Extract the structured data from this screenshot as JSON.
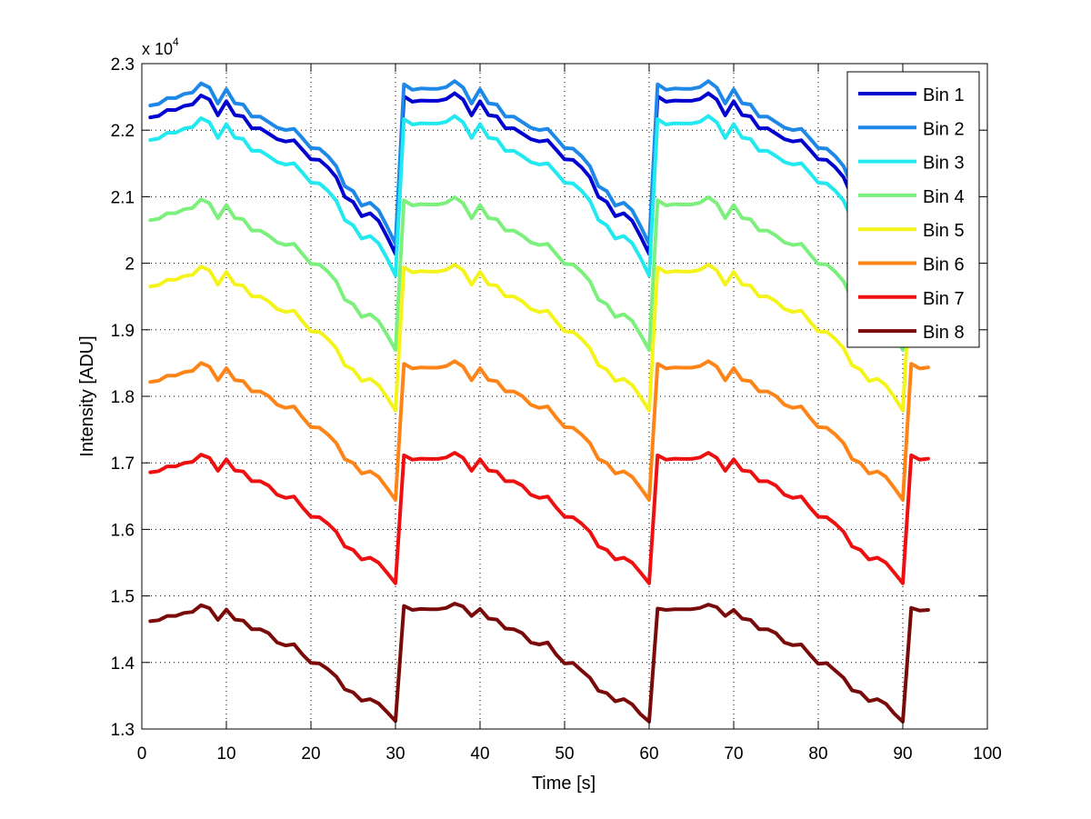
{
  "chart_data": {
    "type": "line",
    "title": "",
    "xlabel": "Time [s]",
    "ylabel": "Intensity [ADU]",
    "y_multiplier_label": "x 10",
    "y_multiplier_exponent": "4",
    "xlim": [
      0,
      100
    ],
    "ylim": [
      13000,
      23000
    ],
    "xticks": [
      0,
      10,
      20,
      30,
      40,
      50,
      60,
      70,
      80,
      90,
      100
    ],
    "xtick_labels": [
      "0",
      "10",
      "20",
      "30",
      "40",
      "50",
      "60",
      "70",
      "80",
      "90",
      "100"
    ],
    "yticks": [
      13000,
      14000,
      15000,
      16000,
      17000,
      18000,
      19000,
      20000,
      21000,
      22000,
      23000
    ],
    "ytick_labels": [
      "1.3",
      "1.4",
      "1.5",
      "1.6",
      "1.7",
      "1.8",
      "1.9",
      "2",
      "2.1",
      "2.2",
      "2.3"
    ],
    "grid": true,
    "legend_position": "top-right",
    "x_start": 1,
    "x_step": 1,
    "series": [
      {
        "name": "Bin 1",
        "color": "#0000d0",
        "values": [
          22193,
          22215,
          22303,
          22303,
          22365,
          22386,
          22522,
          22460,
          22222,
          22434,
          22227,
          22208,
          22029,
          22029,
          21948,
          21865,
          21829,
          21848,
          21707,
          21562,
          21553,
          21443,
          21293,
          20998,
          20921,
          20707,
          20752,
          20638,
          20400,
          20140,
          22508,
          22427,
          22446,
          22441,
          22441,
          22467,
          22555,
          22460,
          22222,
          22434,
          22227,
          22208,
          22029,
          22029,
          21948,
          21865,
          21829,
          21848,
          21707,
          21562,
          21553,
          21443,
          21293,
          20998,
          20921,
          20707,
          20752,
          20638,
          20400,
          20140,
          22508,
          22427,
          22446,
          22441,
          22441,
          22467,
          22555,
          22460,
          22222,
          22434,
          22227,
          22208,
          22029,
          22029,
          21948,
          21865,
          21829,
          21848,
          21707,
          21562,
          21553,
          21443,
          21293,
          20998,
          20921,
          20707,
          20752,
          20638,
          20400,
          20140,
          22508,
          22427,
          22446
        ]
      },
      {
        "name": "Bin 2",
        "color": "#1e88e8",
        "values": [
          22371,
          22393,
          22482,
          22482,
          22545,
          22566,
          22704,
          22641,
          22400,
          22615,
          22405,
          22385,
          22204,
          22204,
          22122,
          22038,
          22002,
          22021,
          21878,
          21731,
          21722,
          21611,
          21458,
          21159,
          21082,
          20865,
          20910,
          20795,
          20553,
          20290,
          22690,
          22607,
          22627,
          22622,
          22622,
          22648,
          22738,
          22641,
          22400,
          22615,
          22405,
          22385,
          22204,
          22204,
          22122,
          22038,
          22002,
          22021,
          21878,
          21731,
          21722,
          21611,
          21458,
          21159,
          21082,
          20865,
          20910,
          20795,
          20553,
          20290,
          22690,
          22607,
          22627,
          22622,
          22622,
          22648,
          22738,
          22641,
          22400,
          22615,
          22405,
          22385,
          22204,
          22204,
          22122,
          22038,
          22002,
          22021,
          21878,
          21731,
          21722,
          21611,
          21458,
          21159,
          21082,
          20865,
          20910,
          20795,
          20553,
          20290,
          22690,
          22607,
          22627
        ]
      },
      {
        "name": "Bin 3",
        "color": "#22e8f0",
        "values": [
          21853,
          21875,
          21962,
          21962,
          22024,
          22045,
          22180,
          22118,
          21882,
          22092,
          21886,
          21868,
          21690,
          21690,
          21610,
          21520,
          21484,
          21503,
          21360,
          21210,
          21200,
          21090,
          20940,
          20650,
          20570,
          20370,
          20410,
          20300,
          20075,
          19813,
          22166,
          22085,
          22104,
          22100,
          22100,
          22126,
          22213,
          22118,
          21882,
          22092,
          21886,
          21868,
          21690,
          21690,
          21610,
          21520,
          21484,
          21503,
          21360,
          21210,
          21200,
          21090,
          20940,
          20650,
          20570,
          20370,
          20410,
          20300,
          20075,
          19813,
          22166,
          22085,
          22104,
          22100,
          22100,
          22126,
          22213,
          22118,
          21882,
          22092,
          21886,
          21868,
          21690,
          21690,
          21610,
          21520,
          21484,
          21503,
          21360,
          21210,
          21200,
          21090,
          20940,
          20650,
          20570,
          20370,
          20410,
          20300,
          20075,
          19813,
          22166,
          22085,
          22104
        ]
      },
      {
        "name": "Bin 4",
        "color": "#7cf07c",
        "values": [
          20648,
          20668,
          20752,
          20752,
          20811,
          20831,
          20960,
          20901,
          20675,
          20876,
          20679,
          20661,
          20492,
          20492,
          20415,
          20313,
          20274,
          20292,
          20139,
          19989,
          19982,
          19874,
          19729,
          19453,
          19385,
          19193,
          19233,
          19132,
          18923,
          18697,
          20946,
          20869,
          20888,
          20883,
          20883,
          20908,
          20992,
          20901,
          20675,
          20876,
          20679,
          20661,
          20492,
          20492,
          20415,
          20313,
          20274,
          20292,
          20139,
          19989,
          19982,
          19874,
          19729,
          19453,
          19385,
          19193,
          19233,
          19132,
          18923,
          18697,
          20946,
          20869,
          20888,
          20883,
          20883,
          20908,
          20992,
          20901,
          20675,
          20876,
          20679,
          20661,
          20492,
          20492,
          20415,
          20313,
          20274,
          20292,
          20139,
          19989,
          19982,
          19874,
          19729,
          19453,
          19385,
          19193,
          19233,
          19132,
          18923,
          18697,
          20946,
          20869,
          20888
        ]
      },
      {
        "name": "Bin 5",
        "color": "#f4f41a",
        "values": [
          19651,
          19671,
          19751,
          19751,
          19807,
          19827,
          19950,
          19894,
          19677,
          19870,
          19682,
          19664,
          19502,
          19502,
          19428,
          19311,
          19268,
          19288,
          19125,
          18976,
          18969,
          18863,
          18722,
          18467,
          18402,
          18229,
          18263,
          18170,
          17986,
          17785,
          19937,
          19863,
          19881,
          19876,
          19876,
          19900,
          19980,
          19894,
          19677,
          19870,
          19682,
          19664,
          19502,
          19502,
          19428,
          19311,
          19268,
          19288,
          19125,
          18976,
          18969,
          18863,
          18722,
          18467,
          18402,
          18229,
          18263,
          18170,
          17986,
          17785,
          19937,
          19863,
          19881,
          19876,
          19876,
          19900,
          19980,
          19894,
          19677,
          19870,
          19682,
          19664,
          19502,
          19502,
          19428,
          19311,
          19268,
          19288,
          19125,
          18976,
          18969,
          18863,
          18722,
          18467,
          18402,
          18229,
          18263,
          18170,
          17986,
          17785,
          19937,
          19863,
          19881
        ]
      },
      {
        "name": "Bin 6",
        "color": "#ff8418",
        "values": [
          18216,
          18235,
          18311,
          18311,
          18364,
          18383,
          18500,
          18447,
          18241,
          18424,
          18245,
          18228,
          18074,
          18074,
          18004,
          17875,
          17827,
          17848,
          17683,
          17537,
          17529,
          17428,
          17297,
          17058,
          16998,
          16840,
          16873,
          16789,
          16622,
          16443,
          18488,
          18418,
          18434,
          18430,
          18430,
          18453,
          18529,
          18447,
          18241,
          18424,
          18245,
          18228,
          18074,
          18074,
          18004,
          17875,
          17827,
          17848,
          17683,
          17537,
          17529,
          17428,
          17297,
          17058,
          16998,
          16840,
          16873,
          16789,
          16622,
          16443,
          18488,
          18418,
          18434,
          18430,
          18430,
          18453,
          18529,
          18447,
          18241,
          18424,
          18245,
          18228,
          18074,
          18074,
          18004,
          17875,
          17827,
          17848,
          17683,
          17537,
          17529,
          17428,
          17297,
          17058,
          16998,
          16840,
          16873,
          16789,
          16622,
          16443,
          18488,
          18418,
          18434
        ]
      },
      {
        "name": "Bin 7",
        "color": "#ee1010",
        "values": [
          16858,
          16875,
          16947,
          16947,
          16997,
          17015,
          17125,
          17075,
          16881,
          17053,
          16885,
          16870,
          16724,
          16724,
          16659,
          16521,
          16473,
          16494,
          16330,
          16190,
          16183,
          16088,
          15964,
          15743,
          15691,
          15546,
          15575,
          15500,
          15349,
          15190,
          17113,
          17048,
          17063,
          17059,
          17059,
          17080,
          17152,
          17075,
          16881,
          17053,
          16885,
          16870,
          16724,
          16724,
          16659,
          16521,
          16473,
          16494,
          16330,
          16190,
          16183,
          16088,
          15964,
          15743,
          15691,
          15546,
          15575,
          15500,
          15349,
          15190,
          17113,
          17048,
          17063,
          17059,
          17059,
          17080,
          17152,
          17075,
          16881,
          17053,
          16885,
          16870,
          16724,
          16724,
          16659,
          16521,
          16473,
          16494,
          16330,
          16190,
          16183,
          16088,
          15964,
          15743,
          15691,
          15546,
          15575,
          15500,
          15349,
          15190,
          17113,
          17048,
          17063
        ]
      },
      {
        "name": "Bin 8",
        "color": "#7a0a0a",
        "values": [
          14620,
          14635,
          14700,
          14700,
          14745,
          14760,
          14860,
          14815,
          14640,
          14795,
          14645,
          14630,
          14500,
          14500,
          14440,
          14300,
          14255,
          14275,
          14120,
          13993,
          13985,
          13900,
          13790,
          13597,
          13550,
          13425,
          13450,
          13385,
          13255,
          13120,
          14850,
          14790,
          14805,
          14800,
          14800,
          14820,
          14885,
          14840,
          14700,
          14805,
          14660,
          14645,
          14510,
          14500,
          14440,
          14300,
          14270,
          14300,
          14120,
          13985,
          13993,
          13880,
          13770,
          13575,
          13540,
          13415,
          13450,
          13370,
          13220,
          13110,
          14810,
          14790,
          14800,
          14800,
          14800,
          14820,
          14870,
          14830,
          14700,
          14790,
          14660,
          14640,
          14500,
          14500,
          14440,
          14300,
          14260,
          14270,
          14120,
          13980,
          13990,
          13880,
          13770,
          13580,
          13550,
          13420,
          13450,
          13380,
          13230,
          13110,
          14820,
          14780,
          14790
        ]
      }
    ]
  }
}
